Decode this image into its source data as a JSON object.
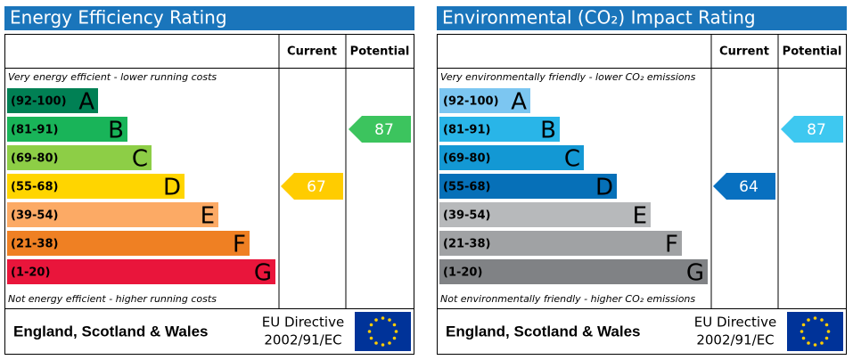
{
  "panels": [
    {
      "title": "Energy Efficiency Rating",
      "col_current": "Current",
      "col_potential": "Potential",
      "top_note": "Very energy efficient - lower running costs",
      "bottom_note": "Not energy efficient - higher running costs",
      "bands": [
        {
          "range": "(92-100)",
          "letter": "A",
          "color": "#008054"
        },
        {
          "range": "(81-91)",
          "letter": "B",
          "color": "#19b459"
        },
        {
          "range": "(69-80)",
          "letter": "C",
          "color": "#8dce46"
        },
        {
          "range": "(55-68)",
          "letter": "D",
          "color": "#ffd500"
        },
        {
          "range": "(39-54)",
          "letter": "E",
          "color": "#fcaa65"
        },
        {
          "range": "(21-38)",
          "letter": "F",
          "color": "#ef8023"
        },
        {
          "range": "(1-20)",
          "letter": "G",
          "color": "#e9153b"
        }
      ],
      "current": {
        "value": 67,
        "color": "#ffcc00"
      },
      "potential": {
        "value": 87,
        "color": "#3cc45e"
      },
      "footer": "England, Scotland & Wales",
      "directive": [
        "EU Directive",
        "2002/91/EC"
      ]
    },
    {
      "title": "Environmental (CO₂) Impact Rating",
      "col_current": "Current",
      "col_potential": "Potential",
      "top_note": "Very environmentally friendly - lower CO₂ emissions",
      "bottom_note": "Not environmentally friendly - higher CO₂ emissions",
      "bands": [
        {
          "range": "(92-100)",
          "letter": "A",
          "color": "#7cc6f1"
        },
        {
          "range": "(81-91)",
          "letter": "B",
          "color": "#29b5e8"
        },
        {
          "range": "(69-80)",
          "letter": "C",
          "color": "#1398d4"
        },
        {
          "range": "(55-68)",
          "letter": "D",
          "color": "#0670b8"
        },
        {
          "range": "(39-54)",
          "letter": "E",
          "color": "#b7b9bb"
        },
        {
          "range": "(21-38)",
          "letter": "F",
          "color": "#a0a2a4"
        },
        {
          "range": "(1-20)",
          "letter": "G",
          "color": "#808285"
        }
      ],
      "current": {
        "value": 64,
        "color": "#0870c0"
      },
      "potential": {
        "value": 87,
        "color": "#3ec8f0"
      },
      "footer": "England, Scotland & Wales",
      "directive": [
        "EU Directive",
        "2002/91/EC"
      ]
    }
  ]
}
